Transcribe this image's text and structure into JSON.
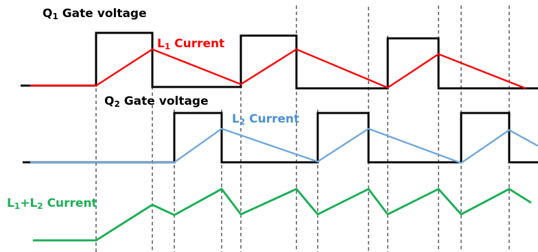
{
  "labels": {
    "q1_gate": {
      "main": "Q",
      "sub": "1",
      "rest": " Gate voltage"
    },
    "l1_current": {
      "main": "L",
      "sub": "1",
      "rest": " Current"
    },
    "q2_gate": {
      "main": "Q",
      "sub": "2",
      "rest": " Gate voltage"
    },
    "l2_current": {
      "main": "L",
      "sub": "2",
      "rest": " Current"
    },
    "sum_current": {
      "a": "L",
      "a_sub": "1",
      "plus": "+",
      "b": "L",
      "b_sub": "2",
      "rest": " Current"
    }
  },
  "colors": {
    "gate": "#000000",
    "l1": "#ff0000",
    "l2": "#6fa8dc",
    "sum": "#1aaf54",
    "grid": "#000000"
  }
}
